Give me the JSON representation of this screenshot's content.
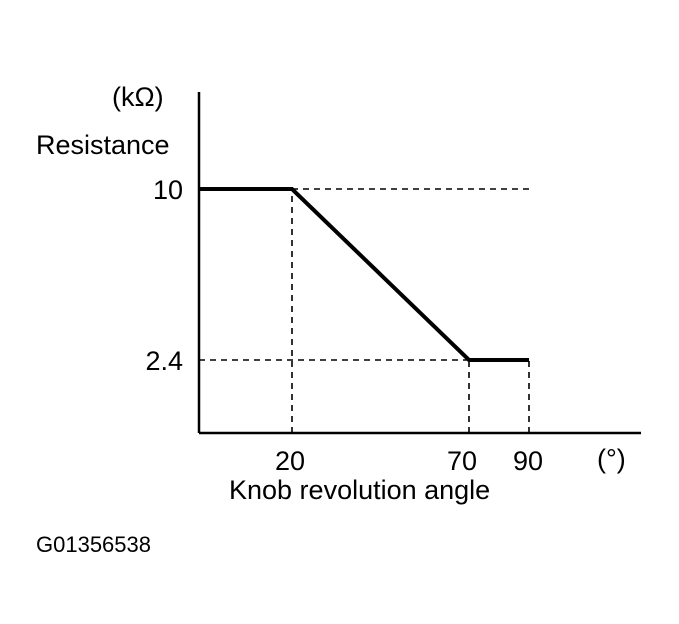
{
  "chart_data": {
    "type": "line",
    "title": "",
    "ylabel": "Resistance",
    "yunit": "(kΩ)",
    "xlabel": "Knob revolution angle",
    "xunit": "(°)",
    "x_ticks": [
      "20",
      "70",
      "90"
    ],
    "y_ticks": [
      "10",
      "2.4"
    ],
    "x": [
      0,
      20,
      70,
      90
    ],
    "series": [
      {
        "values": [
          10,
          10,
          2.4,
          2.4
        ]
      }
    ],
    "reference_lines": [
      {
        "from": [
          20,
          10
        ],
        "to": [
          90,
          10
        ]
      },
      {
        "from": [
          0,
          2.4
        ],
        "to": [
          70,
          2.4
        ]
      },
      {
        "from": [
          20,
          0
        ],
        "to": [
          20,
          10
        ]
      },
      {
        "from": [
          70,
          0
        ],
        "to": [
          70,
          2.4
        ]
      },
      {
        "from": [
          90,
          0
        ],
        "to": [
          90,
          2.4
        ]
      }
    ],
    "grid": false,
    "legend": "none"
  },
  "figure_code": "G01356538"
}
